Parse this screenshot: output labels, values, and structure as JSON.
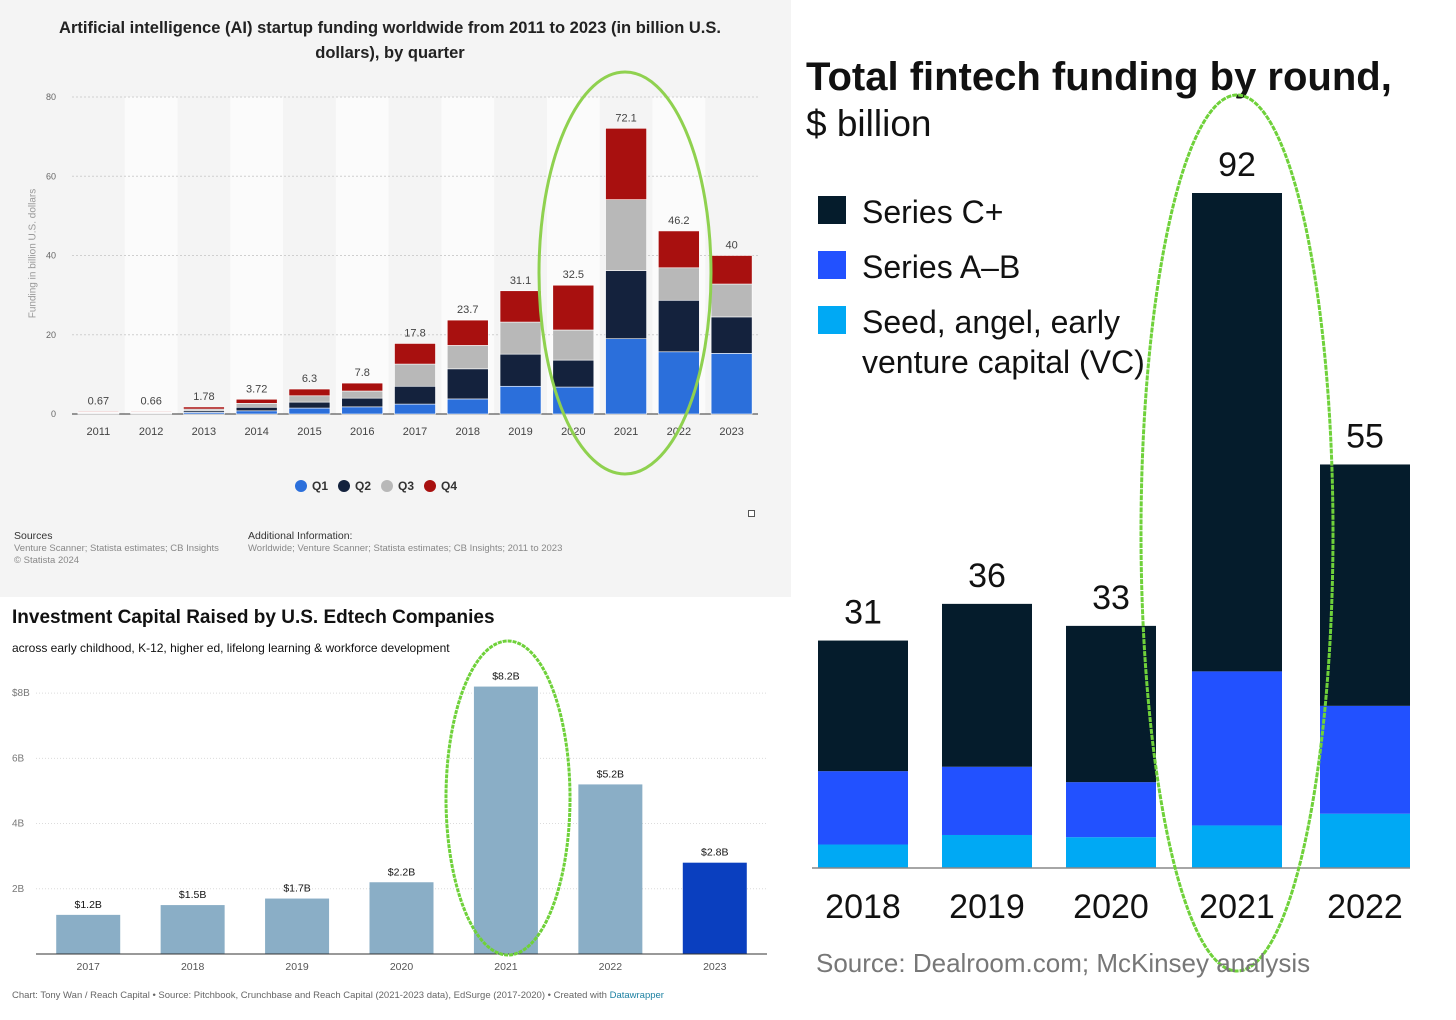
{
  "chart_data": [
    {
      "type": "bar",
      "stacked": true,
      "title": "Artificial intelligence (AI) startup funding worldwide from 2011 to 2023 (in billion U.S. dollars), by quarter",
      "ylabel": "Funding in billion U.S. dollars",
      "ylim": [
        0,
        80
      ],
      "yticks": [
        "0",
        "20",
        "40",
        "60",
        "80"
      ],
      "grid": true,
      "legend_position": "bottom",
      "categories": [
        "2011",
        "2012",
        "2013",
        "2014",
        "2015",
        "2016",
        "2017",
        "2018",
        "2019",
        "2020",
        "2021",
        "2022",
        "2023"
      ],
      "category_labels": [
        "2011",
        "2012",
        "2013",
        "2014",
        "2015",
        "2016",
        "2017",
        "2018",
        "2019",
        "2020",
        "2021",
        "2022",
        "2023"
      ],
      "totals": [
        0.67,
        0.66,
        1.78,
        3.72,
        6.3,
        7.8,
        17.8,
        23.7,
        31.1,
        32.5,
        72.1,
        46.2,
        40
      ],
      "total_labels": [
        "0.67",
        "0.66",
        "1.78",
        "3.72",
        "6.3",
        "7.8",
        "17.8",
        "23.7",
        "31.1",
        "32.5",
        "72.1",
        "46.2",
        "40"
      ],
      "series": [
        {
          "name": "Q1",
          "color": "#2b6fdb",
          "values": [
            0.15,
            0.15,
            0.4,
            0.8,
            1.5,
            1.8,
            2.5,
            3.8,
            7,
            6.8,
            19,
            15.7,
            15.3
          ]
        },
        {
          "name": "Q2",
          "color": "#14223d",
          "values": [
            0.17,
            0.17,
            0.4,
            0.9,
            1.5,
            2.2,
            4.5,
            7.6,
            8.1,
            6.8,
            17.2,
            13,
            9.2
          ]
        },
        {
          "name": "Q3",
          "color": "#b8b8b8",
          "values": [
            0.17,
            0.17,
            0.45,
            1.0,
            1.6,
            1.8,
            5.6,
            5.9,
            8.1,
            7.6,
            17.9,
            8.2,
            8.3
          ]
        },
        {
          "name": "Q4",
          "color": "#a8100f",
          "values": [
            0.18,
            0.17,
            0.53,
            1.02,
            1.7,
            2.0,
            5.2,
            6.4,
            7.9,
            11.3,
            18,
            9.3,
            7.2
          ]
        }
      ],
      "sources_heading": "Sources",
      "sources_text": "Venture Scanner; Statista estimates; CB Insights",
      "copyright": "© Statista 2024",
      "additional_heading": "Additional Information:",
      "additional_text": "Worldwide; Venture Scanner; Statista estimates; CB Insights; 2011 to 2023",
      "highlight": "2021"
    },
    {
      "type": "bar",
      "title": "Investment Capital Raised by U.S. Edtech Companies",
      "subtitle": "across early childhood, K-12, higher ed, lifelong learning & workforce development",
      "ylim": [
        0,
        8.8
      ],
      "yticks": [
        {
          "value": 2,
          "label": "2B"
        },
        {
          "value": 4,
          "label": "4B"
        },
        {
          "value": 6,
          "label": "6B"
        },
        {
          "value": 8,
          "label": "$8B"
        }
      ],
      "grid": true,
      "categories": [
        "2017",
        "2018",
        "2019",
        "2020",
        "2021",
        "2022",
        "2023"
      ],
      "values": [
        1.2,
        1.5,
        1.7,
        2.2,
        8.2,
        5.2,
        2.8
      ],
      "value_labels": [
        "$1.2B",
        "$1.5B",
        "$1.7B",
        "$2.2B",
        "$8.2B",
        "$5.2B",
        "$2.8B"
      ],
      "colors": [
        "#8aaec6",
        "#8aaec6",
        "#8aaec6",
        "#8aaec6",
        "#8aaec6",
        "#8aaec6",
        "#0a3fbf"
      ],
      "footer": "Chart: Tony Wan / Reach Capital • Source: Pitchbook, Crunchbase and Reach Capital (2021-2023 data), EdSurge (2017-2020) • Created with",
      "footer_link": "Datawrapper",
      "highlight": "2021"
    },
    {
      "type": "bar",
      "stacked": true,
      "title": "Total fintech funding by round,",
      "subtitle": "$ billion",
      "categories": [
        "2018",
        "2019",
        "2020",
        "2021",
        "2022"
      ],
      "totals": [
        31,
        36,
        33,
        92,
        55
      ],
      "total_labels": [
        "31",
        "36",
        "33",
        "92",
        "55"
      ],
      "series": [
        {
          "name": "Seed, angel, early venture capital (VC)",
          "color": "#00a9f4",
          "values": [
            3.2,
            4.5,
            4.2,
            5.8,
            7.4
          ]
        },
        {
          "name": "Series A–B",
          "color": "#2251ff",
          "values": [
            10,
            9.3,
            7.5,
            21,
            14.7
          ]
        },
        {
          "name": "Series C+",
          "color": "#051c2c",
          "values": [
            17.8,
            22.2,
            21.3,
            65.2,
            32.9
          ]
        }
      ],
      "legend": [
        "Series C+",
        "Series A–B",
        "Seed, angel, early",
        "venture capital (VC)"
      ],
      "legend_colors": [
        "#051c2c",
        "#2251ff",
        "#00a9f4"
      ],
      "source": "Source: Dealroom.com; McKinsey analysis",
      "highlight": "2021"
    }
  ]
}
